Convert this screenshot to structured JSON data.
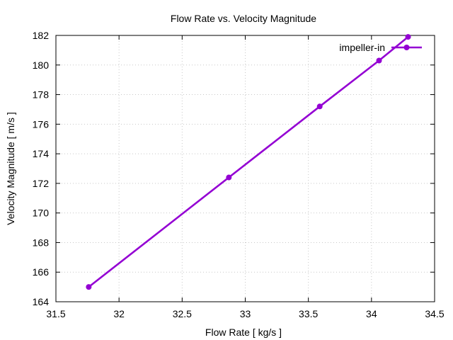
{
  "chart_data": {
    "type": "line",
    "title": "Flow Rate vs. Velocity Magnitude",
    "xlabel": "Flow Rate [ kg/s ]",
    "ylabel": "Velocity Magnitude [ m/s ]",
    "xlim": [
      31.5,
      34.5
    ],
    "ylim": [
      164,
      182
    ],
    "xticks": [
      31.5,
      32,
      32.5,
      33,
      33.5,
      34,
      34.5
    ],
    "xtick_labels": [
      "31.5",
      "32",
      "32.5",
      "33",
      "33.5",
      "34",
      "34.5"
    ],
    "yticks": [
      164,
      166,
      168,
      170,
      172,
      174,
      176,
      178,
      180,
      182
    ],
    "ytick_labels": [
      "164",
      "166",
      "168",
      "170",
      "172",
      "174",
      "176",
      "178",
      "180",
      "182"
    ],
    "grid": true,
    "legend_position": "top-right",
    "series": [
      {
        "name": "impeller-in",
        "color": "#9400d3",
        "marker": "circle",
        "x": [
          31.76,
          32.87,
          33.59,
          34.06,
          34.29
        ],
        "y": [
          165.0,
          172.4,
          177.2,
          180.3,
          181.9
        ]
      }
    ]
  }
}
